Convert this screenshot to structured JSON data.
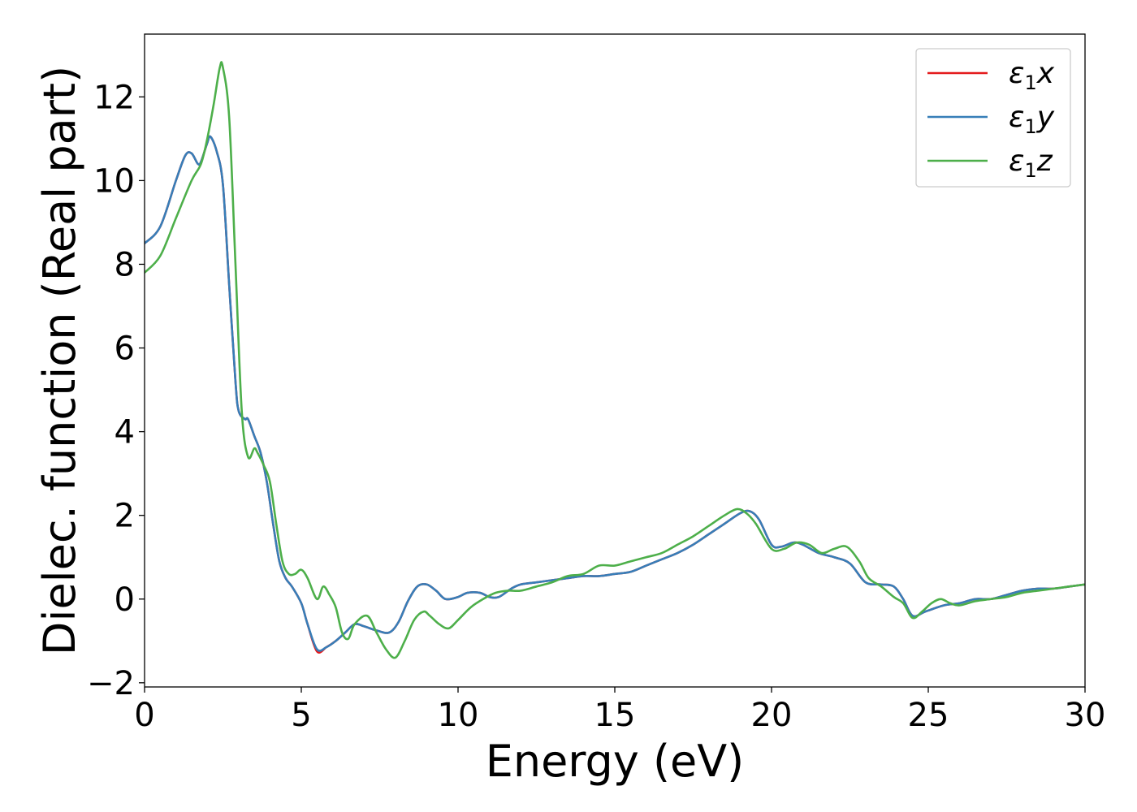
{
  "chart_data": {
    "type": "line",
    "xlabel": "Energy (eV)",
    "ylabel": "Dielec. function (Real part)",
    "xlim": [
      0,
      30
    ],
    "ylim": [
      -2.1,
      13.5
    ],
    "xticks": [
      0,
      5,
      10,
      15,
      20,
      25,
      30
    ],
    "yticks": [
      -2,
      0,
      2,
      4,
      6,
      8,
      10,
      12
    ],
    "xtick_labels": [
      "0",
      "5",
      "10",
      "15",
      "20",
      "25",
      "30"
    ],
    "ytick_labels": [
      "−2",
      "0",
      "2",
      "4",
      "6",
      "8",
      "10",
      "12"
    ],
    "grid": false,
    "legend_position": "top-right",
    "series": [
      {
        "name": "ε1x",
        "symbol": "ε",
        "subscript": "1",
        "axis": "x",
        "color": "#e41a1c",
        "x": [
          0,
          0.5,
          1.0,
          1.3,
          1.5,
          1.7,
          1.8,
          2.0,
          2.1,
          2.3,
          2.5,
          2.7,
          2.9,
          3.0,
          3.2,
          3.3,
          3.5,
          3.7,
          3.9,
          4.1,
          4.3,
          4.5,
          4.7,
          5.0,
          5.2,
          5.5,
          5.8,
          6.1,
          6.4,
          6.7,
          7.0,
          7.4,
          7.8,
          8.1,
          8.4,
          8.7,
          9.0,
          9.3,
          9.6,
          10.0,
          10.3,
          10.7,
          11.0,
          11.3,
          11.7,
          12.0,
          12.5,
          13.0,
          13.5,
          14.0,
          14.5,
          15.0,
          15.5,
          16.0,
          16.5,
          17.0,
          17.5,
          18.0,
          18.5,
          19.0,
          19.3,
          19.6,
          20.0,
          20.3,
          20.7,
          21.0,
          21.5,
          22.0,
          22.5,
          23.0,
          23.5,
          23.9,
          24.2,
          24.5,
          24.9,
          25.5,
          26.0,
          26.5,
          27.0,
          27.5,
          28.0,
          28.5,
          29.0,
          29.5,
          30.0
        ],
        "y": [
          8.5,
          8.9,
          10.0,
          10.6,
          10.65,
          10.4,
          10.45,
          10.9,
          11.05,
          10.7,
          9.9,
          7.5,
          5.2,
          4.5,
          4.3,
          4.3,
          3.9,
          3.5,
          2.8,
          1.8,
          0.9,
          0.5,
          0.3,
          -0.1,
          -0.6,
          -1.25,
          -1.15,
          -1.0,
          -0.8,
          -0.6,
          -0.65,
          -0.75,
          -0.8,
          -0.55,
          -0.05,
          0.3,
          0.35,
          0.2,
          0.0,
          0.05,
          0.15,
          0.15,
          0.05,
          0.05,
          0.25,
          0.35,
          0.4,
          0.45,
          0.5,
          0.55,
          0.55,
          0.6,
          0.65,
          0.8,
          0.95,
          1.1,
          1.3,
          1.55,
          1.8,
          2.05,
          2.1,
          1.9,
          1.3,
          1.25,
          1.35,
          1.3,
          1.1,
          1.0,
          0.85,
          0.4,
          0.35,
          0.3,
          0.0,
          -0.4,
          -0.3,
          -0.15,
          -0.1,
          0.0,
          0.0,
          0.1,
          0.2,
          0.25,
          0.25,
          0.3,
          0.35
        ]
      },
      {
        "name": "ε1y",
        "symbol": "ε",
        "subscript": "1",
        "axis": "y",
        "color": "#377eb8",
        "x": [
          0,
          0.5,
          1.0,
          1.3,
          1.5,
          1.7,
          1.8,
          2.0,
          2.1,
          2.3,
          2.5,
          2.7,
          2.9,
          3.0,
          3.2,
          3.3,
          3.5,
          3.7,
          3.9,
          4.1,
          4.3,
          4.5,
          4.7,
          5.0,
          5.2,
          5.5,
          5.8,
          6.1,
          6.4,
          6.7,
          7.0,
          7.4,
          7.8,
          8.1,
          8.4,
          8.7,
          9.0,
          9.3,
          9.6,
          10.0,
          10.3,
          10.7,
          11.0,
          11.3,
          11.7,
          12.0,
          12.5,
          13.0,
          13.5,
          14.0,
          14.5,
          15.0,
          15.5,
          16.0,
          16.5,
          17.0,
          17.5,
          18.0,
          18.5,
          19.0,
          19.3,
          19.6,
          20.0,
          20.3,
          20.7,
          21.0,
          21.5,
          22.0,
          22.5,
          23.0,
          23.5,
          23.9,
          24.2,
          24.5,
          24.9,
          25.5,
          26.0,
          26.5,
          27.0,
          27.5,
          28.0,
          28.5,
          29.0,
          29.5,
          30.0
        ],
        "y": [
          8.5,
          8.9,
          10.0,
          10.6,
          10.65,
          10.4,
          10.45,
          10.9,
          11.05,
          10.7,
          9.9,
          7.5,
          5.2,
          4.5,
          4.3,
          4.3,
          3.9,
          3.5,
          2.8,
          1.8,
          0.9,
          0.5,
          0.3,
          -0.1,
          -0.6,
          -1.2,
          -1.15,
          -1.0,
          -0.8,
          -0.6,
          -0.65,
          -0.75,
          -0.8,
          -0.55,
          -0.05,
          0.3,
          0.35,
          0.2,
          0.0,
          0.05,
          0.15,
          0.15,
          0.05,
          0.05,
          0.25,
          0.35,
          0.4,
          0.45,
          0.5,
          0.55,
          0.55,
          0.6,
          0.65,
          0.8,
          0.95,
          1.1,
          1.3,
          1.55,
          1.8,
          2.05,
          2.1,
          1.9,
          1.3,
          1.25,
          1.35,
          1.3,
          1.1,
          1.0,
          0.85,
          0.4,
          0.35,
          0.3,
          0.0,
          -0.4,
          -0.3,
          -0.15,
          -0.1,
          0.0,
          0.0,
          0.1,
          0.2,
          0.25,
          0.25,
          0.3,
          0.35
        ]
      },
      {
        "name": "ε1z",
        "symbol": "ε",
        "subscript": "1",
        "axis": "z",
        "color": "#4daf4a",
        "x": [
          0,
          0.5,
          1.0,
          1.5,
          1.8,
          2.0,
          2.2,
          2.4,
          2.5,
          2.7,
          2.9,
          3.1,
          3.3,
          3.5,
          3.6,
          3.8,
          4.0,
          4.2,
          4.4,
          4.6,
          4.8,
          5.0,
          5.2,
          5.5,
          5.7,
          5.9,
          6.1,
          6.3,
          6.5,
          6.7,
          7.1,
          7.4,
          7.7,
          8.0,
          8.3,
          8.6,
          8.9,
          9.1,
          9.4,
          9.7,
          10.0,
          10.4,
          10.8,
          11.2,
          11.6,
          12.0,
          12.5,
          13.0,
          13.5,
          14.0,
          14.5,
          15.0,
          15.5,
          16.0,
          16.5,
          17.0,
          17.5,
          18.0,
          18.5,
          18.9,
          19.2,
          19.5,
          20.0,
          20.4,
          20.8,
          21.2,
          21.6,
          22.0,
          22.4,
          22.8,
          23.1,
          23.5,
          23.9,
          24.2,
          24.5,
          24.8,
          25.1,
          25.4,
          25.7,
          26.0,
          26.5,
          27.0,
          27.5,
          28.0,
          28.5,
          29.0,
          29.5,
          30.0
        ],
        "y": [
          7.8,
          8.2,
          9.1,
          10.0,
          10.4,
          11.0,
          11.8,
          12.7,
          12.7,
          11.5,
          8.0,
          4.5,
          3.4,
          3.6,
          3.5,
          3.2,
          2.8,
          1.8,
          0.9,
          0.6,
          0.6,
          0.7,
          0.5,
          0.0,
          0.3,
          0.1,
          -0.2,
          -0.8,
          -0.95,
          -0.6,
          -0.4,
          -0.8,
          -1.2,
          -1.4,
          -1.0,
          -0.5,
          -0.3,
          -0.4,
          -0.6,
          -0.7,
          -0.5,
          -0.2,
          0.0,
          0.15,
          0.2,
          0.2,
          0.3,
          0.4,
          0.55,
          0.6,
          0.8,
          0.8,
          0.9,
          1.0,
          1.1,
          1.3,
          1.5,
          1.75,
          2.0,
          2.15,
          2.05,
          1.8,
          1.2,
          1.2,
          1.35,
          1.3,
          1.1,
          1.2,
          1.25,
          0.9,
          0.5,
          0.3,
          0.05,
          -0.1,
          -0.45,
          -0.3,
          -0.1,
          0.0,
          -0.1,
          -0.15,
          -0.05,
          0.0,
          0.05,
          0.15,
          0.2,
          0.25,
          0.3,
          0.35
        ]
      }
    ]
  }
}
